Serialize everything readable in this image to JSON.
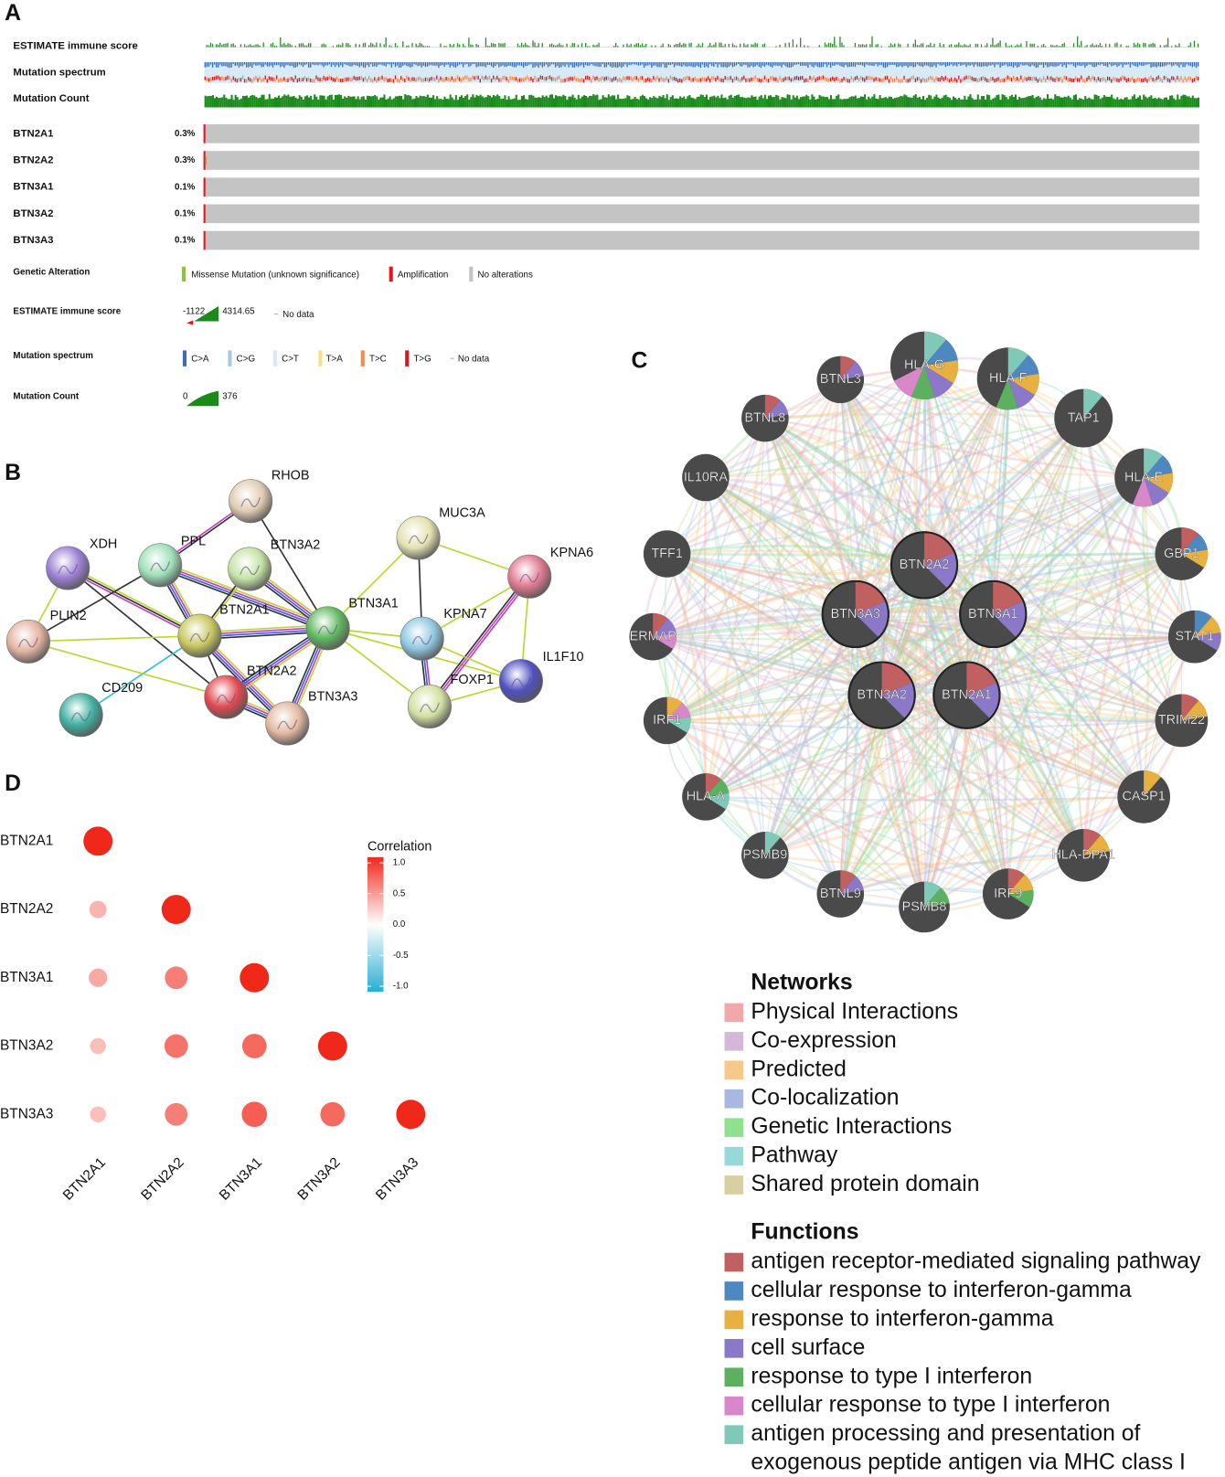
{
  "panel_a": {
    "label": "A",
    "tracks": [
      "ESTIMATE immune score",
      "Mutation spectrum",
      "Mutation Count"
    ],
    "genes": [
      {
        "name": "BTN2A1",
        "percent": "0.3%"
      },
      {
        "name": "BTN2A2",
        "percent": "0.3%"
      },
      {
        "name": "BTN3A1",
        "percent": "0.1%"
      },
      {
        "name": "BTN3A2",
        "percent": "0.1%"
      },
      {
        "name": "BTN3A3",
        "percent": "0.1%"
      }
    ],
    "legend": {
      "genetic_alteration": {
        "title": "Genetic Alteration",
        "items": [
          {
            "label": "Missense Mutation (unknown significance)",
            "color": "#8cc63f"
          },
          {
            "label": "Amplification",
            "color": "#e8141c"
          },
          {
            "label": "No alterations",
            "color": "#c4c4c4"
          }
        ]
      },
      "estimate": {
        "title": "ESTIMATE immune score",
        "min": -1122,
        "max": 4314.65,
        "no_data": "No data"
      },
      "spectrum": {
        "title": "Mutation spectrum",
        "items": [
          {
            "label": "C>A",
            "color": "#3d6eb4"
          },
          {
            "label": "C>G",
            "color": "#a6c8e6"
          },
          {
            "label": "C>T",
            "color": "#d8eaf6"
          },
          {
            "label": "T>A",
            "color": "#f7e08c"
          },
          {
            "label": "T>C",
            "color": "#f08c50"
          },
          {
            "label": "T>G",
            "color": "#d7191c"
          }
        ],
        "no_data": "No data"
      },
      "count": {
        "title": "Mutation Count",
        "min": 0,
        "max": 376
      }
    }
  },
  "panel_b": {
    "label": "B",
    "nodes": [
      "RHOB",
      "XDH",
      "PPL",
      "BTN3A2",
      "MUC3A",
      "KPNA6",
      "PLIN2",
      "BTN2A1",
      "BTN3A1",
      "KPNA7",
      "IL1F10",
      "CD209",
      "BTN2A2",
      "BTN3A3",
      "FOXP1"
    ]
  },
  "panel_c": {
    "label": "C",
    "nodes": [
      "BTNL3",
      "HLA-G",
      "HLA-F",
      "TAP1",
      "BTNL8",
      "IL10RA",
      "HLA-E",
      "TFF1",
      "GBP1",
      "ERMAP",
      "STAT1",
      "IRF1",
      "TRIM22",
      "HLA-A",
      "CASP1",
      "PSMB9",
      "HLA-DPA1",
      "BTNL9",
      "PSMB8",
      "IRF9",
      "BTN2A2",
      "BTN3A3",
      "BTN3A1",
      "BTN3A2",
      "BTN2A1"
    ],
    "networks": {
      "title": "Networks",
      "items": [
        {
          "label": "Physical Interactions",
          "color": "#f0a8a8"
        },
        {
          "label": "Co-expression",
          "color": "#d4b8d8"
        },
        {
          "label": "Predicted",
          "color": "#f8c888"
        },
        {
          "label": "Co-localization",
          "color": "#a8b8e0"
        },
        {
          "label": "Genetic Interactions",
          "color": "#90e090"
        },
        {
          "label": "Pathway",
          "color": "#98d8d8"
        },
        {
          "label": "Shared protein domain",
          "color": "#d8d0a0"
        }
      ]
    },
    "functions": {
      "title": "Functions",
      "items": [
        {
          "lines": [
            "antigen receptor-mediated signaling pathway"
          ],
          "color": "#c06060"
        },
        {
          "lines": [
            "cellular response to interferon-gamma"
          ],
          "color": "#4e88c0"
        },
        {
          "lines": [
            "response to interferon-gamma"
          ],
          "color": "#e8b040"
        },
        {
          "lines": [
            "cell surface"
          ],
          "color": "#8c78c8"
        },
        {
          "lines": [
            "response to type I interferon"
          ],
          "color": "#5cb060"
        },
        {
          "lines": [
            "cellular response to type I interferon"
          ],
          "color": "#d888c8"
        },
        {
          "lines": [
            "antigen processing and presentation of",
            "exogenous peptide antigen via MHC class I"
          ],
          "color": "#80c8b8"
        }
      ]
    }
  },
  "chart_data": {
    "type": "corrplot",
    "panel_label": "D",
    "legend_title": "Correlation",
    "rows": [
      "BTN2A1",
      "BTN2A2",
      "BTN3A1",
      "BTN3A2",
      "BTN3A3"
    ],
    "columns": [
      "BTN2A1",
      "BTN2A2",
      "BTN3A1",
      "BTN3A2",
      "BTN3A3"
    ],
    "values": [
      [
        1,
        null,
        null,
        null,
        null
      ],
      [
        0.35,
        1,
        null,
        null,
        null
      ],
      [
        0.4,
        0.6,
        1,
        null,
        null
      ],
      [
        0.3,
        0.65,
        0.7,
        1,
        null
      ],
      [
        0.3,
        0.6,
        0.75,
        0.7,
        1
      ]
    ],
    "clim": [
      -1,
      1
    ],
    "cticks": [
      {
        "value": 1,
        "label": "1.0"
      },
      {
        "value": 0.5,
        "label": "0.5"
      },
      {
        "value": 0,
        "label": "0.0"
      },
      {
        "value": -0.5,
        "label": "-0.5"
      },
      {
        "value": -1,
        "label": "-1.0"
      }
    ],
    "high_color": "#f0281a",
    "mid_color": "#ffffff",
    "low_color": "#2aaed0"
  }
}
